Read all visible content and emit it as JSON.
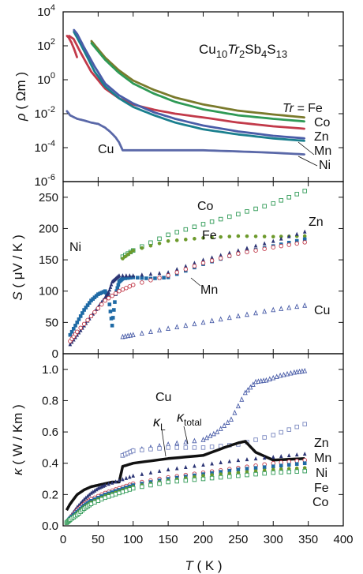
{
  "chart_data": [
    {
      "panel": "top",
      "type": "line",
      "title": "Cu10Tr2Sb4S13",
      "formula_parts": [
        "Cu",
        "10",
        "Tr",
        "2",
        "Sb",
        "4",
        "S",
        "13"
      ],
      "ylabel_parts": [
        "ρ",
        " ( Ωm )"
      ],
      "yscale": "log",
      "ylim": [
        1e-06,
        10000.0
      ],
      "xlim": [
        0,
        400
      ],
      "y_tick_labels": [
        {
          "base": "10",
          "exp": "4"
        },
        {
          "base": "10",
          "exp": "2"
        },
        {
          "base": "10",
          "exp": "0"
        },
        {
          "base": "10",
          "exp": "-2"
        },
        {
          "base": "10",
          "exp": "-4"
        },
        {
          "base": "10",
          "exp": "-6"
        }
      ],
      "legend_prefix": "Tr = ",
      "series": [
        {
          "name": "Fe",
          "color": "#7a7a2c",
          "x": [
            40,
            60,
            80,
            100,
            130,
            160,
            200,
            250,
            300,
            345
          ],
          "y": [
            200,
            20,
            3.5,
            0.9,
            0.25,
            0.09,
            0.035,
            0.015,
            0.009,
            0.006
          ]
        },
        {
          "name": "Co",
          "color": "#2f9a56",
          "x": [
            40,
            60,
            80,
            100,
            130,
            160,
            200,
            250,
            300,
            345
          ],
          "y": [
            150,
            15,
            2.5,
            0.6,
            0.15,
            0.05,
            0.018,
            0.008,
            0.005,
            0.0035
          ]
        },
        {
          "name": "Zn",
          "color": "#c23a4a",
          "x": [
            8,
            15,
            25,
            40,
            60,
            80,
            100,
            130,
            160,
            200,
            250,
            300,
            345
          ],
          "y": [
            400,
            250,
            40,
            3,
            0.3,
            0.08,
            0.035,
            0.017,
            0.01,
            0.006,
            0.003,
            0.0018,
            0.0013
          ]
        },
        {
          "name": "Mn",
          "color": "#1a7f8e",
          "x": [
            15,
            20,
            30,
            45,
            60,
            80,
            100,
            130,
            160,
            200,
            250,
            300,
            345
          ],
          "y": [
            700,
            300,
            50,
            3,
            0.4,
            0.08,
            0.025,
            0.008,
            0.003,
            0.0012,
            0.0006,
            0.00035,
            0.00025
          ]
        },
        {
          "name": "Ni",
          "color": "#4a5da8",
          "x": [
            15,
            20,
            30,
            45,
            60,
            80,
            100,
            130,
            160,
            200,
            250,
            300,
            345
          ],
          "y": [
            900,
            500,
            80,
            6,
            0.6,
            0.12,
            0.04,
            0.012,
            0.005,
            0.002,
            0.0009,
            0.0005,
            0.00035
          ]
        },
        {
          "name": "Cu",
          "color": "#5a68a8",
          "x": [
            5,
            10,
            20,
            30,
            40,
            50,
            60,
            68,
            75,
            80,
            85,
            100,
            150,
            200,
            250,
            300,
            345
          ],
          "y": [
            0.015,
            0.008,
            0.005,
            0.004,
            0.003,
            0.0025,
            0.0015,
            0.0008,
            0.0004,
            0.0002,
            7e-05,
            7e-05,
            7e-05,
            7e-05,
            6e-05,
            5e-05,
            4e-05
          ]
        },
        {
          "name": "Cu-low",
          "color": "#c23a4a",
          "x": [
            5,
            8,
            12,
            16,
            20
          ],
          "y": [
            400,
            300,
            150,
            60,
            20
          ]
        }
      ],
      "labels": [
        "Fe",
        "Co",
        "Zn",
        "Mn",
        "Ni",
        "Cu"
      ]
    },
    {
      "panel": "middle",
      "type": "scatter",
      "ylabel_parts": [
        "S",
        " ( μV / K )"
      ],
      "ylim": [
        0,
        275
      ],
      "xlim": [
        0,
        400
      ],
      "yticks": [
        0,
        50,
        100,
        150,
        200,
        250
      ],
      "series": [
        {
          "name": "Co",
          "color": "#2f9a56",
          "marker": "square-open",
          "x": [
            85,
            100,
            150,
            200,
            250,
            300,
            345
          ],
          "y": [
            155,
            165,
            190,
            207,
            223,
            240,
            260
          ]
        },
        {
          "name": "Fe",
          "color": "#6d9a2c",
          "marker": "circle",
          "x": [
            85,
            100,
            150,
            200,
            250,
            300,
            345
          ],
          "y": [
            152,
            165,
            180,
            185,
            188,
            187,
            188
          ]
        },
        {
          "name": "Ni",
          "color": "#1f6aa5",
          "marker": "square",
          "x": [
            10,
            20,
            30,
            40,
            50,
            60,
            65,
            70,
            75,
            80,
            85,
            100,
            125,
            150,
            200,
            250,
            300,
            345
          ],
          "y": [
            30,
            50,
            70,
            85,
            95,
            100,
            90,
            45,
            95,
            115,
            120,
            122,
            120,
            122,
            143,
            160,
            172,
            183
          ]
        },
        {
          "name": "Zn",
          "color": "#2c3575",
          "marker": "triangle",
          "x": [
            10,
            20,
            30,
            40,
            50,
            60,
            65,
            70,
            75,
            80,
            100,
            150,
            200,
            250,
            300,
            345
          ],
          "y": [
            15,
            30,
            45,
            60,
            75,
            90,
            98,
            115,
            120,
            125,
            125,
            130,
            150,
            165,
            180,
            195
          ]
        },
        {
          "name": "Mn",
          "color": "#c23a4a",
          "marker": "circle-open",
          "x": [
            10,
            20,
            40,
            60,
            80,
            100,
            150,
            200,
            250,
            300,
            345
          ],
          "y": [
            20,
            35,
            60,
            85,
            100,
            110,
            125,
            145,
            160,
            170,
            178
          ]
        },
        {
          "name": "Cu",
          "color": "#4a5da8",
          "marker": "triangle-open",
          "x": [
            85,
            100,
            150,
            200,
            250,
            300,
            345
          ],
          "y": [
            27,
            30,
            40,
            50,
            60,
            70,
            77
          ]
        }
      ],
      "labels": [
        "Co",
        "Fe",
        "Ni",
        "Zn",
        "Mn",
        "Cu"
      ]
    },
    {
      "panel": "bottom",
      "type": "scatter",
      "ylabel_parts": [
        "κ",
        " ( W / Km )"
      ],
      "xlabel_parts": [
        "T",
        " ( K )"
      ],
      "ylim": [
        0,
        1.1
      ],
      "xlim": [
        0,
        400
      ],
      "yticks": [
        0.0,
        0.2,
        0.4,
        0.6,
        0.8,
        1.0
      ],
      "xticks": [
        0,
        50,
        100,
        150,
        200,
        250,
        300,
        350,
        400
      ],
      "series": [
        {
          "name": "Cu",
          "color": "#4a5da8",
          "marker": "triangle-open",
          "x": [
            85,
            100,
            150,
            200,
            220,
            240,
            260,
            275,
            290,
            310,
            330,
            345
          ],
          "y": [
            0.45,
            0.48,
            0.52,
            0.55,
            0.6,
            0.68,
            0.85,
            0.92,
            0.93,
            0.96,
            0.98,
            0.99
          ]
        },
        {
          "name": "κ_total",
          "color": "#7a88c0",
          "marker": "square-open",
          "x": [
            85,
            100,
            150,
            200,
            250,
            300,
            345
          ],
          "y": [
            0.45,
            0.48,
            0.5,
            0.5,
            0.52,
            0.58,
            0.65
          ]
        },
        {
          "name": "κ_L",
          "color": "#111111",
          "marker": "line",
          "x": [
            5,
            10,
            20,
            30,
            40,
            50,
            60,
            70,
            80,
            85,
            100,
            150,
            200,
            230,
            250,
            260,
            275,
            300,
            345
          ],
          "y": [
            0.1,
            0.14,
            0.2,
            0.23,
            0.25,
            0.26,
            0.27,
            0.28,
            0.28,
            0.38,
            0.4,
            0.43,
            0.45,
            0.5,
            0.53,
            0.54,
            0.47,
            0.42,
            0.43
          ]
        },
        {
          "name": "Zn",
          "color": "#2c3575",
          "marker": "triangle",
          "x": [
            5,
            10,
            20,
            30,
            40,
            50,
            60,
            80,
            100,
            150,
            200,
            250,
            300,
            345
          ],
          "y": [
            0.02,
            0.06,
            0.12,
            0.17,
            0.21,
            0.24,
            0.26,
            0.29,
            0.32,
            0.36,
            0.39,
            0.42,
            0.44,
            0.46
          ]
        },
        {
          "name": "Mn",
          "color": "#c23a4a",
          "marker": "circle-open",
          "x": [
            5,
            10,
            20,
            30,
            40,
            60,
            80,
            100,
            150,
            200,
            250,
            300,
            345
          ],
          "y": [
            0.02,
            0.05,
            0.1,
            0.14,
            0.17,
            0.21,
            0.24,
            0.27,
            0.31,
            0.34,
            0.37,
            0.4,
            0.42
          ]
        },
        {
          "name": "Ni",
          "color": "#1f6aa5",
          "marker": "square",
          "x": [
            5,
            10,
            20,
            30,
            40,
            60,
            80,
            100,
            150,
            200,
            250,
            300,
            345
          ],
          "y": [
            0.02,
            0.05,
            0.09,
            0.13,
            0.16,
            0.2,
            0.23,
            0.26,
            0.3,
            0.33,
            0.36,
            0.38,
            0.4
          ]
        },
        {
          "name": "Fe",
          "color": "#6d9a2c",
          "marker": "circle",
          "x": [
            5,
            10,
            20,
            30,
            40,
            60,
            80,
            100,
            150,
            200,
            250,
            300,
            345
          ],
          "y": [
            0.02,
            0.04,
            0.08,
            0.12,
            0.15,
            0.19,
            0.22,
            0.25,
            0.29,
            0.32,
            0.34,
            0.36,
            0.37
          ]
        },
        {
          "name": "Co",
          "color": "#2f9a56",
          "marker": "square-open",
          "x": [
            5,
            10,
            20,
            30,
            40,
            60,
            80,
            100,
            150,
            200,
            250,
            300,
            345
          ],
          "y": [
            0.02,
            0.04,
            0.07,
            0.11,
            0.14,
            0.18,
            0.21,
            0.24,
            0.28,
            0.3,
            0.32,
            0.34,
            0.35
          ]
        }
      ],
      "labels": [
        "Cu",
        "κ_L",
        "κ_total",
        "Zn",
        "Mn",
        "Ni",
        "Fe",
        "Co"
      ]
    }
  ]
}
